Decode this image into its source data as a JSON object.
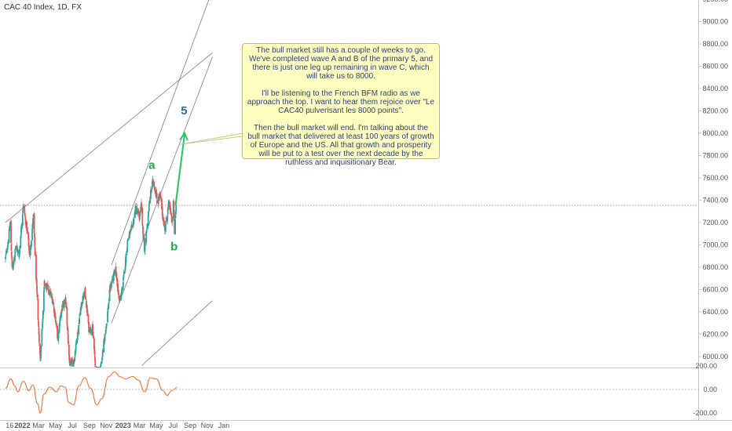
{
  "header": {
    "title": "CAC 40 Index, 1D, FX"
  },
  "annotation": {
    "paragraphs": [
      "The bull market still has a couple of weeks to go. We've completed wave A and B of the primary 5, and there is just one leg up remaining in wave C, which will take us to 8000.",
      "I'll be listening to the French BFM radio as we approach the top. I want to hear them rejoice over \"Le CAC40 pulverisant les 8000 points\".",
      "Then the bull market will end. I'm talking about the bull market that delivered at least 100 years of growth of Europe and the US. All that growth and prosperity will be put to a test over the next decade by the ruthless and inquisitionary Bear."
    ]
  },
  "chart_data": [
    {
      "type": "candlestick",
      "title": "CAC 40 Index, 1D, FX",
      "x_tick_labels": [
        "16",
        "2022",
        "Mar",
        "May",
        "Jul",
        "Sep",
        "Nov",
        "2023",
        "Mar",
        "May",
        "Jul",
        "Sep",
        "Nov",
        "Jan"
      ],
      "y_tick_labels": [
        "6000.00",
        "6200.00",
        "6400.00",
        "6600.00",
        "6800.00",
        "7000.00",
        "7200.00",
        "7400.00",
        "7600.00",
        "7800.00",
        "8000.00",
        "8200.00",
        "8400.00",
        "8600.00",
        "8800.00",
        "9000.00",
        "9200.00"
      ],
      "ylim": [
        5930,
        9200
      ],
      "last_price": "7354.28",
      "wave_labels": [
        {
          "text": "a",
          "x": "2023-04-15",
          "y": 7680
        },
        {
          "text": "b",
          "x": "2023-07-05",
          "y": 6950
        },
        {
          "text": "5",
          "x": "2023-08-10",
          "y": 8170
        }
      ],
      "projection": {
        "from": [
          "2023-07-10",
          7354
        ],
        "to": [
          "2023-08-12",
          8000
        ]
      },
      "colors": {
        "up": "#26a69a",
        "down": "#ef5350",
        "price_line": "#ef5350",
        "projection": "#22c55e",
        "wave_a": "#22a64a",
        "wave_5": "#2b6a9a"
      },
      "close_path": [
        [
          "2021-11-01",
          6880
        ],
        [
          "2021-11-12",
          7060
        ],
        [
          "2021-11-18",
          7190
        ],
        [
          "2021-11-26",
          6740
        ],
        [
          "2021-12-08",
          7000
        ],
        [
          "2021-12-20",
          6900
        ],
        [
          "2022-01-04",
          7360
        ],
        [
          "2022-01-20",
          7100
        ],
        [
          "2022-01-28",
          6900
        ],
        [
          "2022-02-10",
          7250
        ],
        [
          "2022-02-24",
          6500
        ],
        [
          "2022-03-07",
          5960
        ],
        [
          "2022-03-22",
          6650
        ],
        [
          "2022-04-05",
          6600
        ],
        [
          "2022-04-22",
          6500
        ],
        [
          "2022-05-10",
          6150
        ],
        [
          "2022-05-20",
          6400
        ],
        [
          "2022-06-08",
          6500
        ],
        [
          "2022-06-20",
          5940
        ],
        [
          "2022-07-05",
          5940
        ],
        [
          "2022-07-20",
          6200
        ],
        [
          "2022-08-01",
          6450
        ],
        [
          "2022-08-16",
          6580
        ],
        [
          "2022-08-30",
          6250
        ],
        [
          "2022-09-12",
          6250
        ],
        [
          "2022-09-28",
          5760
        ],
        [
          "2022-10-14",
          5940
        ],
        [
          "2022-11-02",
          6300
        ],
        [
          "2022-11-15",
          6620
        ],
        [
          "2022-11-28",
          6720
        ],
        [
          "2022-12-06",
          6780
        ],
        [
          "2022-12-15",
          6550
        ],
        [
          "2022-12-22",
          6500
        ],
        [
          "2023-01-04",
          6720
        ],
        [
          "2023-01-18",
          7050
        ],
        [
          "2023-02-02",
          7150
        ],
        [
          "2023-02-16",
          7330
        ],
        [
          "2023-03-01",
          7250
        ],
        [
          "2023-03-08",
          7350
        ],
        [
          "2023-03-14",
          7100
        ],
        [
          "2023-03-20",
          6950
        ],
        [
          "2023-04-03",
          7300
        ],
        [
          "2023-04-12",
          7480
        ],
        [
          "2023-04-20",
          7580
        ],
        [
          "2023-05-01",
          7450
        ],
        [
          "2023-05-05",
          7380
        ],
        [
          "2023-05-15",
          7450
        ],
        [
          "2023-05-25",
          7250
        ],
        [
          "2023-06-01",
          7150
        ],
        [
          "2023-06-12",
          7300
        ],
        [
          "2023-06-16",
          7380
        ],
        [
          "2023-06-28",
          7200
        ],
        [
          "2023-07-03",
          7400
        ],
        [
          "2023-07-06",
          7100
        ],
        [
          "2023-07-12",
          7354
        ]
      ]
    },
    {
      "type": "line",
      "title": "oscillator",
      "y_tick_labels": [
        "200.00",
        "0.00",
        "-200.00"
      ],
      "ylim": [
        -220,
        160
      ],
      "series": [
        {
          "values": [
            [
              "2021-11-01",
              10
            ],
            [
              "2021-11-20",
              90
            ],
            [
              "2021-12-05",
              30
            ],
            [
              "2021-12-15",
              -20
            ],
            [
              "2022-01-05",
              70
            ],
            [
              "2022-01-25",
              -10
            ],
            [
              "2022-02-08",
              40
            ],
            [
              "2022-02-25",
              -120
            ],
            [
              "2022-03-07",
              -200
            ],
            [
              "2022-03-20",
              -40
            ],
            [
              "2022-04-10",
              20
            ],
            [
              "2022-05-05",
              -20
            ],
            [
              "2022-05-20",
              30
            ],
            [
              "2022-06-05",
              20
            ],
            [
              "2022-06-18",
              -110
            ],
            [
              "2022-07-05",
              -130
            ],
            [
              "2022-07-25",
              30
            ],
            [
              "2022-08-15",
              100
            ],
            [
              "2022-09-05",
              10
            ],
            [
              "2022-09-28",
              -130
            ],
            [
              "2022-10-15",
              -80
            ],
            [
              "2022-11-10",
              110
            ],
            [
              "2022-12-01",
              150
            ],
            [
              "2022-12-20",
              110
            ],
            [
              "2023-01-10",
              90
            ],
            [
              "2023-02-05",
              110
            ],
            [
              "2023-02-25",
              80
            ],
            [
              "2023-03-20",
              -20
            ],
            [
              "2023-04-10",
              100
            ],
            [
              "2023-05-01",
              90
            ],
            [
              "2023-05-25",
              -10
            ],
            [
              "2023-06-10",
              -50
            ],
            [
              "2023-06-25",
              -10
            ],
            [
              "2023-07-05",
              0
            ],
            [
              "2023-07-15",
              20
            ]
          ]
        }
      ]
    }
  ]
}
